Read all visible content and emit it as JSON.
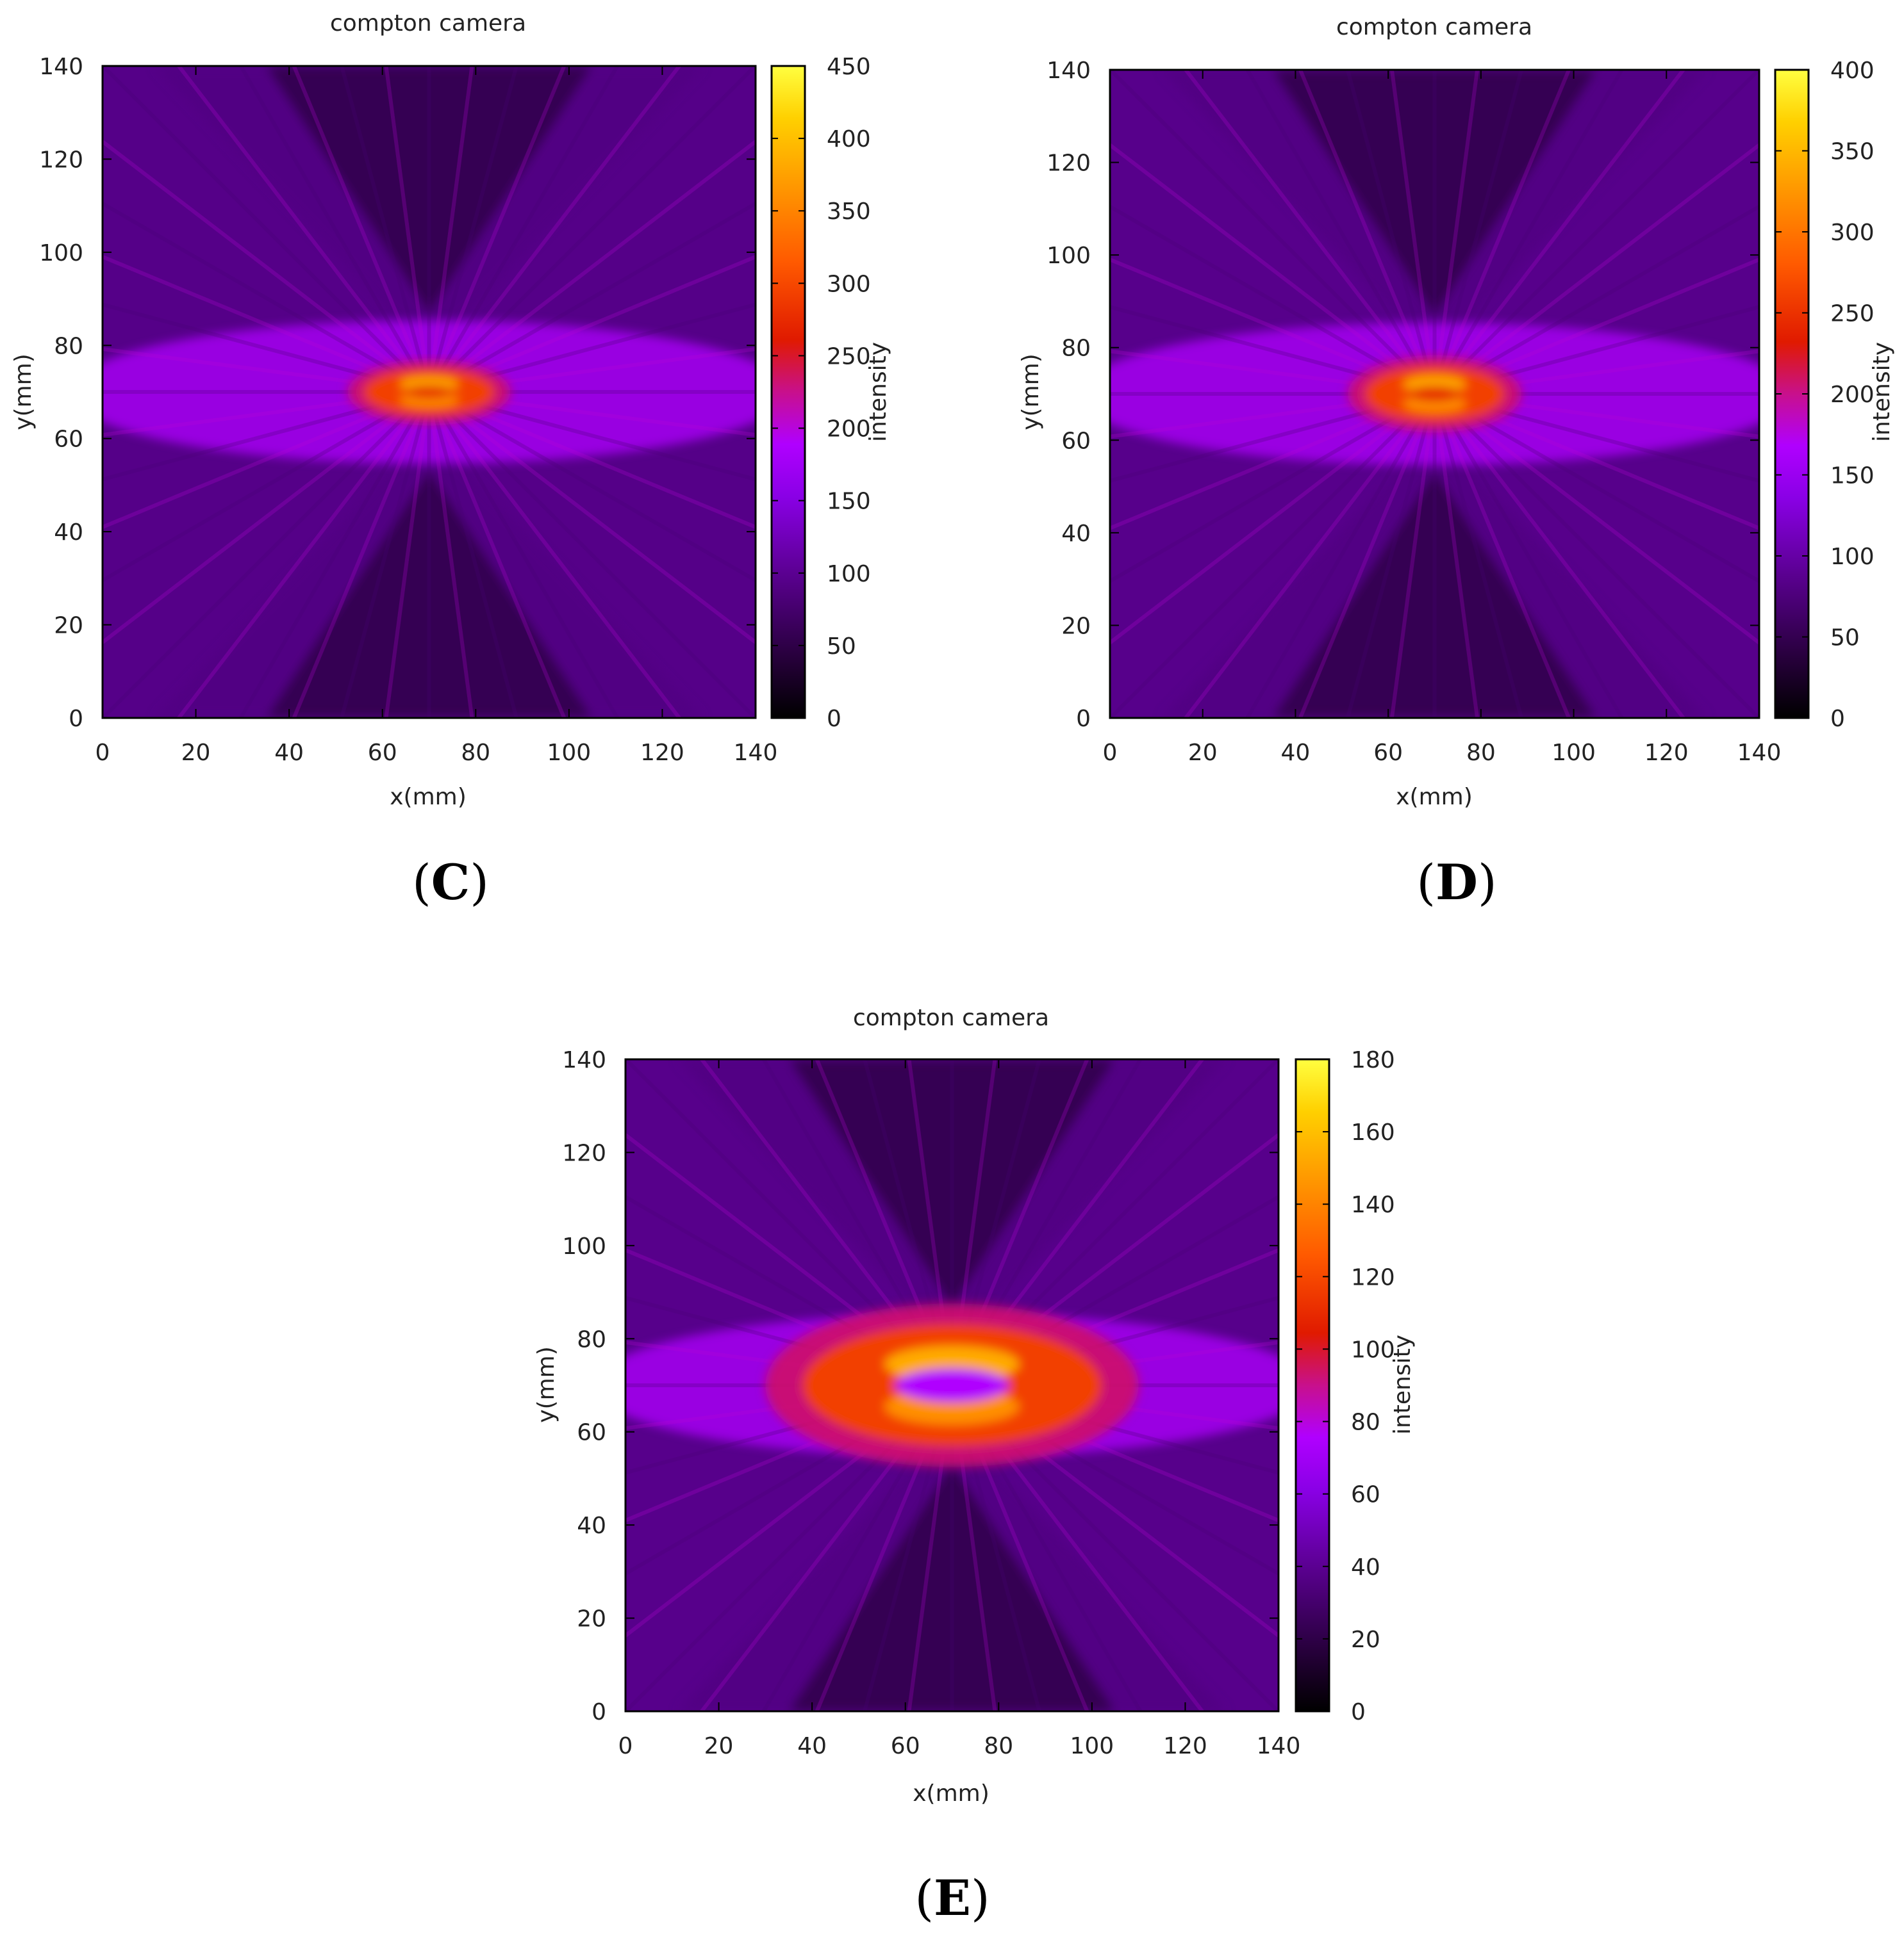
{
  "palette": [
    "#000000",
    "#2a0040",
    "#5a0090",
    "#8a00e6",
    "#b000ff",
    "#c8108c",
    "#e01a00",
    "#ff5a00",
    "#ff9a00",
    "#ffd000",
    "#ffff40"
  ],
  "chart_data": [
    {
      "panel": "C",
      "type": "heatmap",
      "title": "compton camera",
      "xlabel": "x(mm)",
      "ylabel": "y(mm)",
      "colorbar_label": "intensity",
      "xlim": [
        0,
        140
      ],
      "ylim": [
        0,
        140
      ],
      "xticks": [
        "0",
        "20",
        "40",
        "60",
        "80",
        "100",
        "120",
        "140"
      ],
      "yticks": [
        "0",
        "20",
        "40",
        "60",
        "80",
        "100",
        "120",
        "140"
      ],
      "zlim": [
        0,
        450
      ],
      "cbticks": [
        "0",
        "50",
        "100",
        "150",
        "200",
        "250",
        "300",
        "350",
        "400",
        "450"
      ],
      "peak_center": [
        70,
        70
      ],
      "peak_value": 450,
      "hot_region": {
        "rx": 14,
        "ry": 5
      },
      "background": 110
    },
    {
      "panel": "D",
      "type": "heatmap",
      "title": "compton camera",
      "xlabel": "x(mm)",
      "ylabel": "y(mm)",
      "colorbar_label": "intensity",
      "xlim": [
        0,
        140
      ],
      "ylim": [
        0,
        140
      ],
      "xticks": [
        "0",
        "20",
        "40",
        "60",
        "80",
        "100",
        "120",
        "140"
      ],
      "yticks": [
        "0",
        "20",
        "40",
        "60",
        "80",
        "100",
        "120",
        "140"
      ],
      "zlim": [
        0,
        400
      ],
      "cbticks": [
        "0",
        "50",
        "100",
        "150",
        "200",
        "250",
        "300",
        "350",
        "400"
      ],
      "peak_center": [
        70,
        70
      ],
      "peak_value": 400,
      "hot_region": {
        "rx": 15,
        "ry": 6
      },
      "background": 100
    },
    {
      "panel": "E",
      "type": "heatmap",
      "title": "compton camera",
      "xlabel": "x(mm)",
      "ylabel": "y(mm)",
      "colorbar_label": "intensity",
      "xlim": [
        0,
        140
      ],
      "ylim": [
        0,
        140
      ],
      "xticks": [
        "0",
        "20",
        "40",
        "60",
        "80",
        "100",
        "120",
        "140"
      ],
      "yticks": [
        "0",
        "20",
        "40",
        "60",
        "80",
        "100",
        "120",
        "140"
      ],
      "zlim": [
        0,
        180
      ],
      "cbticks": [
        "0",
        "20",
        "40",
        "60",
        "80",
        "100",
        "120",
        "140",
        "160",
        "180"
      ],
      "peak_center": [
        70,
        70
      ],
      "peak_value": 180,
      "hot_region": {
        "rx": 32,
        "ry": 13
      },
      "background": 45
    }
  ],
  "panel_labels": {
    "C": {
      "open": "(",
      "letter": "C",
      "close": ")"
    },
    "D": {
      "open": "(",
      "letter": "D",
      "close": ")"
    },
    "E": {
      "open": "(",
      "letter": "E",
      "close": ")"
    }
  }
}
